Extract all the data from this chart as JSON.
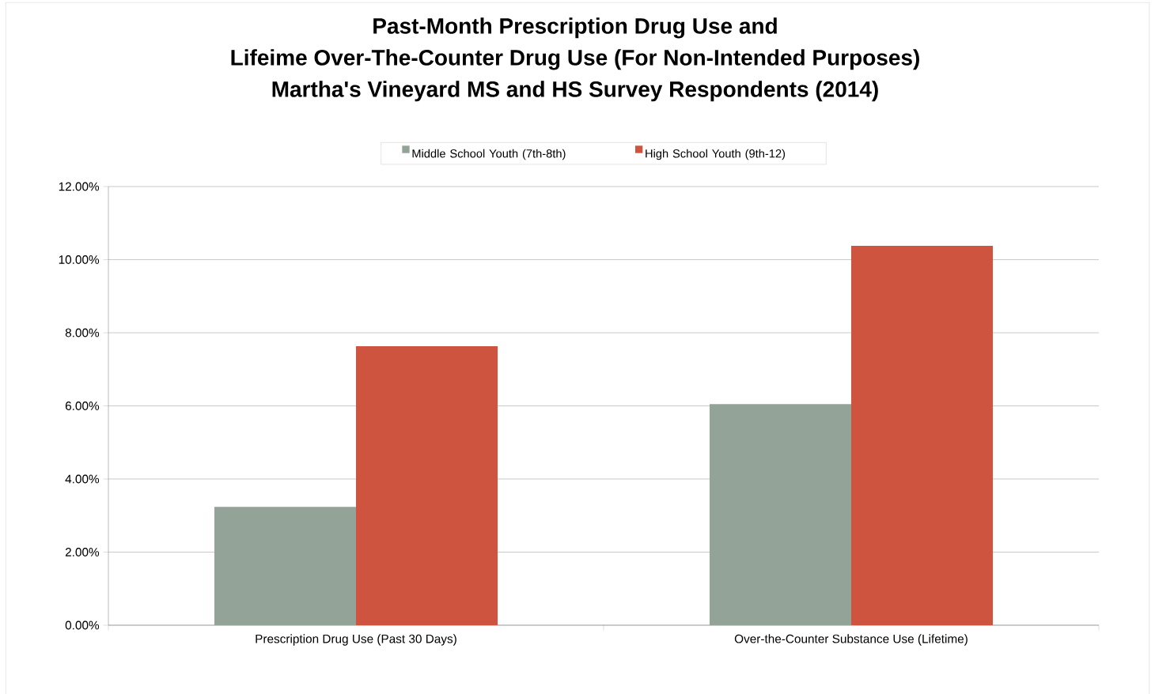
{
  "chart_data": {
    "type": "bar",
    "title": "Past-Month Prescription Drug Use and\nLifeime Over-The-Counter Drug Use (For Non-Intended Purposes)\nMartha's Vineyard MS and HS Survey Respondents (2014)",
    "categories": [
      "Prescription Drug Use (Past 30 Days)",
      "Over-the-Counter Substance Use (Lifetime)"
    ],
    "series": [
      {
        "name": "Middle School Youth (7th-8th)",
        "color": "#93a398",
        "values": [
          3.24,
          6.05
        ]
      },
      {
        "name": "High School Youth (9th-12)",
        "color": "#cf543f",
        "values": [
          7.63,
          10.38
        ]
      }
    ],
    "ylim": [
      0,
      12
    ],
    "yticks": [
      {
        "value": 0,
        "label": "0.00%"
      },
      {
        "value": 2,
        "label": "2.00%"
      },
      {
        "value": 4,
        "label": "4.00%"
      },
      {
        "value": 6,
        "label": "6.00%"
      },
      {
        "value": 8,
        "label": "8.00%"
      },
      {
        "value": 10,
        "label": "10.00%"
      },
      {
        "value": 12,
        "label": "12.00%"
      }
    ],
    "grid": "y",
    "legend": "top"
  }
}
